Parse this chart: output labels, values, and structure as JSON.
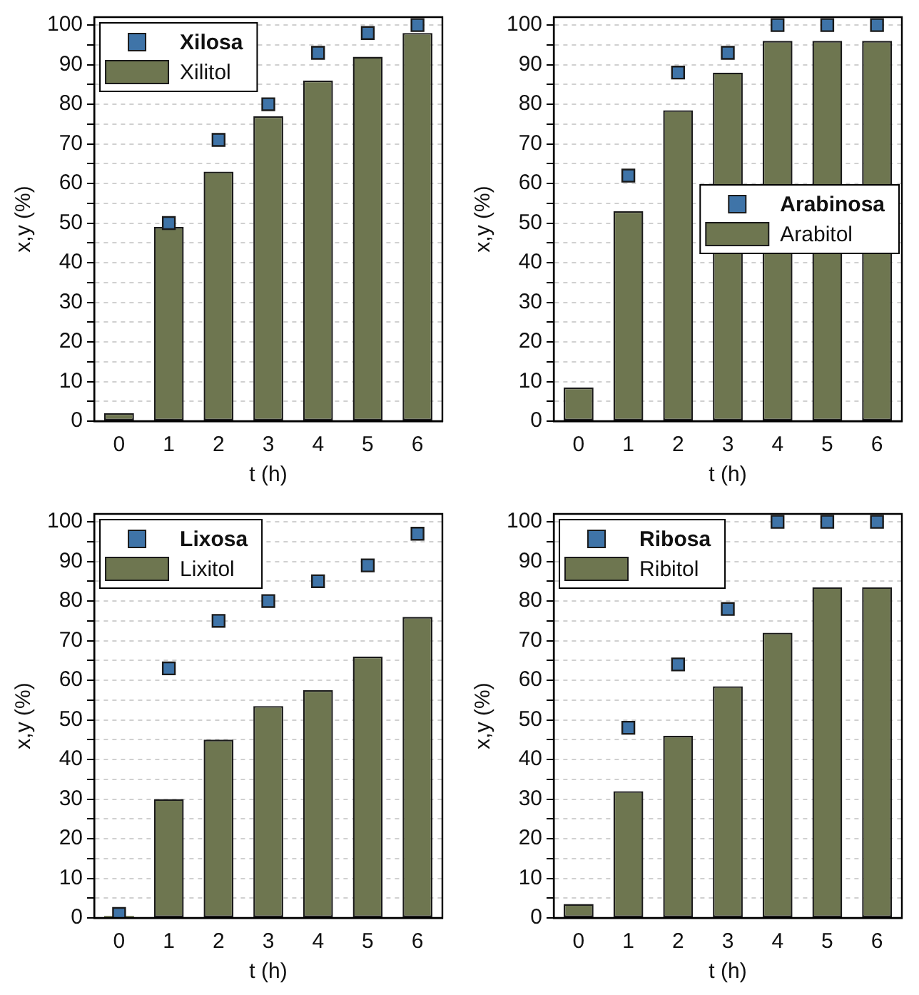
{
  "chart_data": [
    {
      "type": "bar",
      "categories": [
        "0",
        "1",
        "2",
        "3",
        "4",
        "5",
        "6"
      ],
      "xlabel": "t (h)",
      "ylabel": "x,y (%)",
      "ylim": [
        0,
        102
      ],
      "yticks": [
        0,
        {
          "value": 5,
          "label": null
        },
        10,
        {
          "value": 15,
          "label": null
        },
        20,
        {
          "value": 25,
          "label": null
        },
        30,
        {
          "value": 35,
          "label": null
        },
        40,
        {
          "value": 45,
          "label": null
        },
        50,
        {
          "value": 55,
          "label": null
        },
        60,
        {
          "value": 65,
          "label": null
        },
        70,
        {
          "value": 75,
          "label": null
        },
        80,
        {
          "value": 85,
          "label": null
        },
        90,
        {
          "value": 95,
          "label": null
        },
        100
      ],
      "grid": "y",
      "legend": "top left",
      "marker": "square",
      "series": [
        {
          "name": "Xilosa",
          "type": "scatter",
          "color": "#3f74a8",
          "values": [
            null,
            50,
            71,
            80,
            93,
            98,
            100
          ]
        },
        {
          "name": "Xilitol",
          "type": "bar",
          "color": "#6e7650",
          "values": [
            2,
            49,
            63,
            77,
            86,
            92,
            98
          ]
        }
      ]
    },
    {
      "type": "bar",
      "categories": [
        "0",
        "1",
        "2",
        "3",
        "4",
        "5",
        "6"
      ],
      "xlabel": "t (h)",
      "ylabel": "x,y (%)",
      "ylim": [
        0,
        102
      ],
      "yticks": [
        0,
        {
          "value": 5,
          "label": null
        },
        10,
        {
          "value": 15,
          "label": null
        },
        20,
        {
          "value": 25,
          "label": null
        },
        30,
        {
          "value": 35,
          "label": null
        },
        40,
        {
          "value": 45,
          "label": null
        },
        50,
        {
          "value": 55,
          "label": null
        },
        60,
        {
          "value": 65,
          "label": null
        },
        70,
        {
          "value": 75,
          "label": null
        },
        80,
        {
          "value": 85,
          "label": null
        },
        90,
        {
          "value": 95,
          "label": null
        },
        100
      ],
      "grid": "y",
      "legend": "right",
      "marker": "square",
      "series": [
        {
          "name": "Arabinosa",
          "type": "scatter",
          "color": "#3f74a8",
          "values": [
            null,
            62,
            88,
            93,
            100,
            100,
            100
          ]
        },
        {
          "name": "Arabitol",
          "type": "bar",
          "color": "#6e7650",
          "values": [
            8.5,
            53,
            78.5,
            88,
            96,
            96,
            96
          ]
        }
      ]
    },
    {
      "type": "bar",
      "categories": [
        "0",
        "1",
        "2",
        "3",
        "4",
        "5",
        "6"
      ],
      "xlabel": "t (h)",
      "ylabel": "x,y (%)",
      "ylim": [
        0,
        102
      ],
      "yticks": [
        0,
        {
          "value": 5,
          "label": null
        },
        10,
        {
          "value": 15,
          "label": null
        },
        20,
        {
          "value": 25,
          "label": null
        },
        30,
        {
          "value": 35,
          "label": null
        },
        40,
        {
          "value": 45,
          "label": null
        },
        50,
        {
          "value": 55,
          "label": null
        },
        60,
        {
          "value": 65,
          "label": null
        },
        70,
        {
          "value": 75,
          "label": null
        },
        80,
        {
          "value": 85,
          "label": null
        },
        90,
        {
          "value": 95,
          "label": null
        },
        100
      ],
      "grid": "y",
      "legend": "top left",
      "marker": "square",
      "series": [
        {
          "name": "Lixosa",
          "type": "scatter",
          "color": "#3f74a8",
          "values": [
            1,
            63,
            75,
            80,
            85,
            89,
            97
          ]
        },
        {
          "name": "Lixitol",
          "type": "bar",
          "color": "#6e7650",
          "values": [
            0.5,
            30,
            45,
            53.5,
            57.5,
            66,
            76
          ]
        }
      ]
    },
    {
      "type": "bar",
      "categories": [
        "0",
        "1",
        "2",
        "3",
        "4",
        "5",
        "6"
      ],
      "xlabel": "t (h)",
      "ylabel": "x,y (%)",
      "ylim": [
        0,
        102
      ],
      "yticks": [
        0,
        {
          "value": 5,
          "label": null
        },
        10,
        {
          "value": 15,
          "label": null
        },
        20,
        {
          "value": 25,
          "label": null
        },
        30,
        {
          "value": 35,
          "label": null
        },
        40,
        {
          "value": 45,
          "label": null
        },
        50,
        {
          "value": 55,
          "label": null
        },
        60,
        {
          "value": 65,
          "label": null
        },
        70,
        {
          "value": 75,
          "label": null
        },
        80,
        {
          "value": 85,
          "label": null
        },
        90,
        {
          "value": 95,
          "label": null
        },
        100
      ],
      "grid": "y",
      "legend": "top left",
      "marker": "square",
      "series": [
        {
          "name": "Ribosa",
          "type": "scatter",
          "color": "#3f74a8",
          "values": [
            null,
            48,
            64,
            78,
            100,
            100,
            100
          ]
        },
        {
          "name": "Ribitol",
          "type": "bar",
          "color": "#6e7650",
          "values": [
            3.5,
            32,
            46,
            58.5,
            72,
            83.5,
            83.5
          ]
        }
      ]
    }
  ]
}
